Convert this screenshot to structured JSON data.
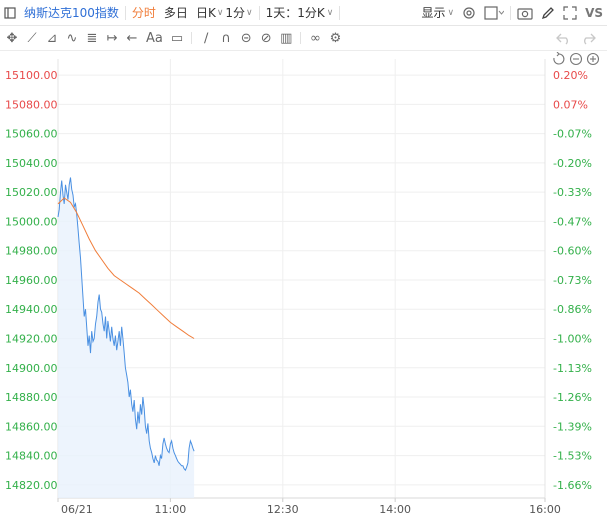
{
  "toolbar": {
    "symbol": "纳斯达克100指数",
    "intraday": "分时",
    "multiday": "多日",
    "kline": "日K",
    "period": "1分",
    "range": "1天：1分K",
    "display": "显示",
    "vs": "VS"
  },
  "drawing_tools": [
    "move-icon",
    "line-tool-icon",
    "channel-tool-icon",
    "wave-tool-icon",
    "fib-tool-icon",
    "measure-tool-icon",
    "arrow-tool-icon",
    "text-tool-icon",
    "note-tool-icon",
    "eraser-icon",
    "magnet-icon",
    "hide-drawings-icon",
    "lock-drawings-icon",
    "delete-drawings-icon",
    "link-icon",
    "drawing-settings-icon"
  ],
  "colors": {
    "up": "#e84a4a",
    "down": "#33b04a",
    "price_line": "#4a90e2",
    "avg_line": "#f07d3a",
    "area_fill": "#e8f1fc"
  },
  "chart_data": {
    "type": "line",
    "x_ticks": [
      "06/21",
      "11:00",
      "12:30",
      "14:00",
      "16:00"
    ],
    "y_ticks_left": [
      "15100.00",
      "15080.00",
      "15060.00",
      "15040.00",
      "15020.00",
      "15000.00",
      "14980.00",
      "14960.00",
      "14940.00",
      "14920.00",
      "14900.00",
      "14880.00",
      "14860.00",
      "14840.00",
      "14820.00"
    ],
    "y_ticks_right": [
      "0.20%",
      "0.07%",
      "-0.07%",
      "-0.20%",
      "-0.33%",
      "-0.47%",
      "-0.60%",
      "-0.73%",
      "-0.86%",
      "-1.00%",
      "-1.13%",
      "-1.26%",
      "-1.39%",
      "-1.53%",
      "-1.66%"
    ],
    "ylim": [
      14811,
      15111
    ],
    "x_range_minutes": [
      0,
      390
    ],
    "x_tick_minutes": [
      0,
      90,
      180,
      270,
      390
    ],
    "series": [
      {
        "x": [
          0,
          1,
          2,
          3,
          4,
          5,
          6,
          7,
          8,
          9,
          10,
          11,
          12,
          13,
          14,
          15,
          16,
          17,
          18,
          19,
          20,
          21,
          22,
          23,
          24,
          25,
          26,
          27,
          28,
          29,
          30,
          31,
          32,
          33,
          34,
          35,
          36,
          37,
          38,
          39,
          40,
          41,
          42,
          43,
          44,
          45,
          46,
          47,
          48,
          49,
          50,
          51,
          52,
          53,
          54,
          55,
          56,
          57,
          58,
          59,
          60,
          61,
          62,
          63,
          64,
          65,
          66,
          67,
          68,
          69,
          70,
          71,
          72,
          73,
          74,
          75,
          76,
          77,
          78,
          79,
          80,
          81,
          82,
          83,
          84,
          85,
          86,
          87,
          88,
          89,
          90,
          91,
          92,
          93,
          94,
          95,
          96,
          97,
          98,
          99,
          100,
          101,
          102,
          103,
          104,
          105,
          106,
          107,
          108,
          109
        ],
        "values": [
          15003,
          15008,
          15020,
          15028,
          15018,
          15012,
          15025,
          15020,
          15015,
          15025,
          15030,
          15022,
          15018,
          15010,
          15012,
          15005,
          14995,
          14985,
          14975,
          14962,
          14948,
          14935,
          14940,
          14928,
          14915,
          14922,
          14910,
          14925,
          14918,
          14920,
          14930,
          14935,
          14945,
          14950,
          14940,
          14938,
          14930,
          14925,
          14935,
          14920,
          14932,
          14925,
          14918,
          14928,
          14920,
          14915,
          14922,
          14912,
          14918,
          14925,
          14915,
          14928,
          14920,
          14910,
          14900,
          14895,
          14890,
          14880,
          14885,
          14875,
          14870,
          14878,
          14865,
          14858,
          14870,
          14862,
          14875,
          14868,
          14880,
          14872,
          14860,
          14855,
          14862,
          14850,
          14845,
          14842,
          14838,
          14835,
          14840,
          14837,
          14836,
          14833,
          14840,
          14838,
          14848,
          14852,
          14848,
          14845,
          14843,
          14842,
          14848,
          14850,
          14845,
          14842,
          14840,
          14838,
          14836,
          14835,
          14834,
          14833,
          14833,
          14831,
          14830,
          14832,
          14835,
          14845,
          14850,
          14848,
          14845,
          14843
        ]
      },
      {
        "x": [
          0,
          5,
          10,
          15,
          20,
          25,
          30,
          35,
          40,
          45,
          50,
          55,
          60,
          65,
          70,
          75,
          80,
          85,
          90,
          95,
          100,
          105,
          109
        ],
        "values": [
          15012,
          15016,
          15013,
          15006,
          14997,
          14988,
          14980,
          14974,
          14968,
          14963,
          14960,
          14957,
          14954,
          14951,
          14947,
          14943,
          14939,
          14935,
          14931,
          14928,
          14925,
          14922,
          14920
        ]
      }
    ]
  }
}
